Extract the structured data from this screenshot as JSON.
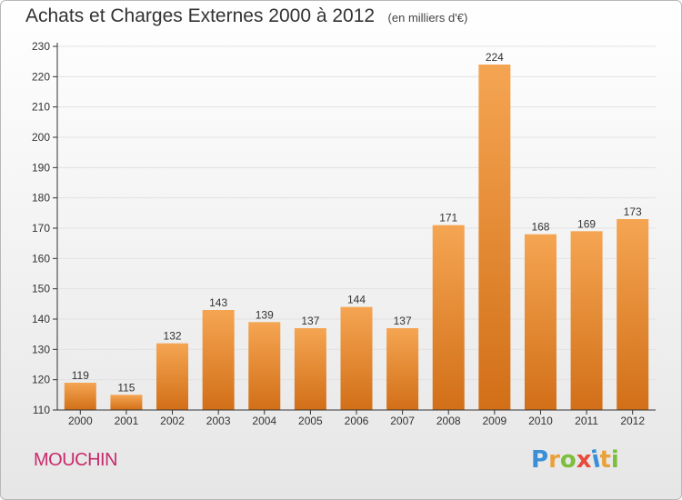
{
  "title": "Achats et Charges Externes 2000 à 2012",
  "unit": "(en milliers d'€)",
  "town": "MOUCHIN",
  "logo": {
    "text": "Proxiti",
    "colors": [
      "#3a8fd8",
      "#e9a23a",
      "#7bbf3a",
      "#e94b3a",
      "#3a8fd8",
      "#e9a23a",
      "#7bbf3a"
    ]
  },
  "chart_data": {
    "type": "bar",
    "categories": [
      "2000",
      "2001",
      "2002",
      "2003",
      "2004",
      "2005",
      "2006",
      "2007",
      "2008",
      "2009",
      "2010",
      "2011",
      "2012"
    ],
    "values": [
      119,
      115,
      132,
      143,
      139,
      137,
      144,
      137,
      171,
      224,
      168,
      169,
      173
    ],
    "ylim": [
      110,
      230
    ],
    "yticks": [
      110,
      120,
      130,
      140,
      150,
      160,
      170,
      180,
      190,
      200,
      210,
      220,
      230
    ],
    "grid": true,
    "colors": {
      "bar_top": "#f5a552",
      "bar_bottom": "#d26f18",
      "grid": "#e2e2e2",
      "axis": "#333333"
    }
  }
}
